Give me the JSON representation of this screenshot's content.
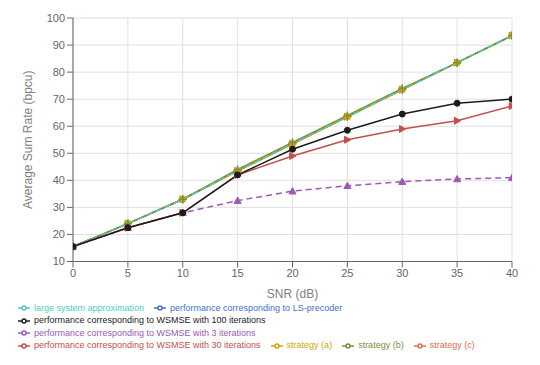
{
  "chart_data": {
    "type": "line",
    "x": [
      0,
      5,
      10,
      15,
      20,
      25,
      30,
      35,
      40
    ],
    "xlabel": "SNR (dB)",
    "ylabel": "Average Sum Rate (bpcu)",
    "xlim": [
      0,
      40
    ],
    "ylim": [
      10,
      100
    ],
    "xticks": [
      0,
      5,
      10,
      15,
      20,
      25,
      30,
      35,
      40
    ],
    "yticks": [
      10,
      20,
      30,
      40,
      50,
      60,
      70,
      80,
      90,
      100
    ],
    "grid": true,
    "legend": "bottom",
    "series": [
      {
        "name": "performance corresponding to LS-precoder",
        "color": "#4472c4",
        "marker": "plus",
        "line_style": "solid",
        "values": [
          15.5,
          24.0,
          33.0,
          43.5,
          53.5,
          63.5,
          73.5,
          83.5,
          93.5
        ]
      },
      {
        "name": "strategy (c)",
        "color": "#e06c4f",
        "marker": "triangle-right",
        "line_style": "solid",
        "values": [
          15.5,
          24.0,
          33.0,
          43.5,
          53.5,
          63.5,
          73.5,
          83.5,
          93.5
        ]
      },
      {
        "name": "strategy (a)",
        "color": "#c8a800",
        "marker": "square",
        "line_style": "solid",
        "values": [
          15.5,
          24.0,
          33.0,
          43.5,
          53.5,
          63.5,
          73.5,
          83.5,
          93.5
        ]
      },
      {
        "name": "performance corresponding to WSMSE with 3 iterations",
        "color": "#9b59b6",
        "marker": "triangle",
        "line_style": "dashed",
        "values": [
          15.5,
          22.5,
          28.0,
          32.5,
          36.0,
          38.0,
          39.5,
          40.5,
          41.0
        ]
      },
      {
        "name": "strategy (b)",
        "color": "#76923c",
        "marker": "plus",
        "line_style": "solid",
        "values": [
          15.5,
          24.0,
          33.0,
          44.0,
          54.0,
          64.0,
          74.0,
          83.5,
          93.5
        ]
      },
      {
        "name": "large system approximation",
        "color": "#4ecdc4",
        "line_style": "dashed",
        "values": [
          15.5,
          24.0,
          33.0,
          43.5,
          53.5,
          63.5,
          73.5,
          83.5,
          93.5
        ]
      },
      {
        "name": "performance corresponding to WSMSE with 30 iterations",
        "color": "#c0504d",
        "marker": "triangle-right",
        "line_style": "solid",
        "values": [
          15.5,
          22.5,
          28.0,
          42.0,
          49.0,
          55.0,
          59.0,
          62.0,
          67.5
        ]
      },
      {
        "name": "performance corresponding to WSMSE with 100 iterations",
        "color": "#1c1c1c",
        "marker": "circle",
        "line_style": "solid",
        "values": [
          15.5,
          22.5,
          28.0,
          42.0,
          51.5,
          58.5,
          64.5,
          68.5,
          70.0
        ]
      }
    ]
  }
}
